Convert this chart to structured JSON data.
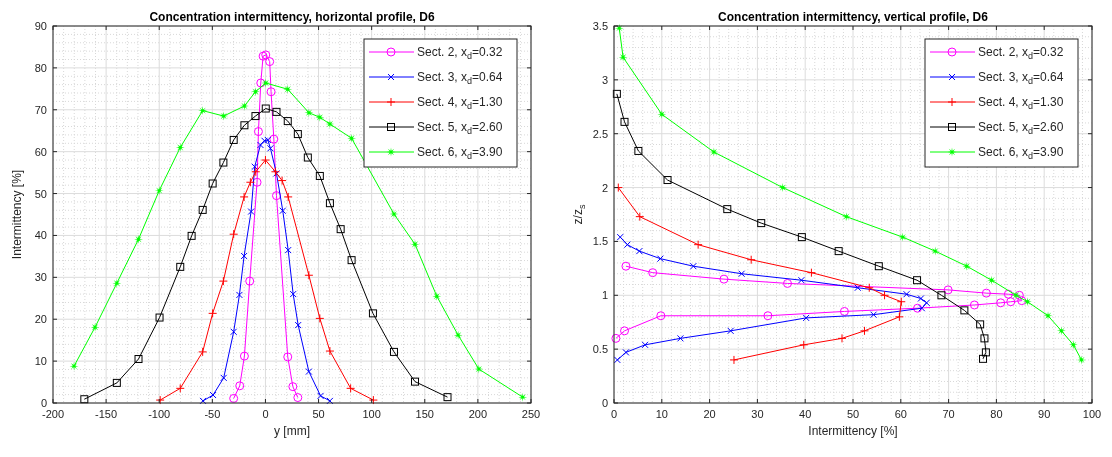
{
  "chart_data": [
    {
      "type": "line",
      "title": "Concentration intermittency, horizontal profile, D6",
      "xlabel": "y [mm]",
      "ylabel": "Intermittency [%]",
      "xlim": [
        -200,
        250
      ],
      "xticks": [
        -200,
        -150,
        -100,
        -50,
        0,
        50,
        100,
        150,
        200,
        250
      ],
      "ylim": [
        0,
        90
      ],
      "yticks": [
        0,
        10,
        20,
        30,
        40,
        50,
        60,
        70,
        80,
        90
      ],
      "grid": true,
      "legend": "top right",
      "line_style": "solid",
      "series": [
        {
          "name": "Sect. 2, x$_{d}$=0.32",
          "color": "#ff00ff",
          "marker": "circle",
          "x": [
            -29.9,
            -24.2,
            -19.8,
            -14.8,
            -7.9,
            -6.6,
            -4.4,
            -2.2,
            0.3,
            4,
            5.3,
            7.9,
            10.4,
            21,
            25.8,
            30.5
          ],
          "values": [
            1.1,
            4.1,
            11.2,
            29.1,
            52.7,
            64.8,
            76.4,
            82.8,
            83.1,
            81.5,
            74.3,
            63,
            49.5,
            11,
            3.9,
            1.3
          ]
        },
        {
          "name": "Sect. 3, x$_{d}$=0.64",
          "color": "#0000ff",
          "marker": "cross",
          "x": [
            -58.8,
            -49.3,
            -39.3,
            -29.9,
            -24.5,
            -20.1,
            -13.5,
            -10.1,
            -4.7,
            -0.9,
            2.2,
            4.7,
            10.4,
            16.3,
            21.4,
            26.1,
            30.8,
            40.9,
            51.9,
            60.7
          ],
          "values": [
            0.5,
            1.9,
            6,
            17,
            25.8,
            35.1,
            45.7,
            56.4,
            61.6,
            62.6,
            62.8,
            60.8,
            54.8,
            45.9,
            36.5,
            26,
            18.6,
            7.5,
            1.7,
            0.5
          ]
        },
        {
          "name": "Sect. 4, x$_{d}$=1.30",
          "color": "#ff0000",
          "marker": "plus",
          "x": [
            -99.1,
            -80.2,
            -59.1,
            -49.7,
            -39.6,
            -29.9,
            -20.1,
            -14.2,
            -9.1,
            0,
            9.4,
            15.7,
            21.4,
            40.9,
            51.2,
            60.7,
            80.2,
            101.6
          ],
          "values": [
            0.7,
            3.5,
            12.2,
            21.4,
            29.1,
            40.3,
            49.2,
            52.7,
            55.2,
            58,
            55.2,
            53.1,
            49.2,
            30.5,
            20.2,
            12.4,
            3.5,
            0.7
          ]
        },
        {
          "name": "Sect. 5, x$_{d}$=2.60",
          "color": "#000000",
          "marker": "square",
          "x": [
            -170.5,
            -139.9,
            -119.5,
            -99.7,
            -80.2,
            -69.5,
            -59.1,
            -49.7,
            -39.6,
            -29.9,
            -19.8,
            -9.4,
            0.3,
            10.4,
            21,
            30.5,
            39.9,
            51.2,
            60.7,
            70.8,
            81.1,
            101.2,
            121,
            140.8,
            171.4
          ],
          "values": [
            0.9,
            4.8,
            10.5,
            20.4,
            32.5,
            39.9,
            46.1,
            52.4,
            57.4,
            62.8,
            66.3,
            68.5,
            70.3,
            69.5,
            67.3,
            64.2,
            58.6,
            54.2,
            47.7,
            41.5,
            34.1,
            21.4,
            12.2,
            5.1,
            1.4
          ]
        },
        {
          "name": "Sect. 6, x$_{d}$=3.90",
          "color": "#00ff00",
          "marker": "star",
          "x": [
            -180.2,
            -160.4,
            -139.9,
            -119.5,
            -100,
            -80.2,
            -59.1,
            -39.3,
            -19.8,
            -9.4,
            0.3,
            21,
            40.9,
            51.2,
            60.7,
            81.1,
            121,
            140.8,
            161.3,
            181.4,
            200.9,
            242.2
          ],
          "values": [
            8.8,
            18.1,
            28.6,
            39.1,
            50.7,
            61,
            69.8,
            68.5,
            70.9,
            74.3,
            76.4,
            74.9,
            69.3,
            68.2,
            66.6,
            63.2,
            45.1,
            37.9,
            25.5,
            16.2,
            8.1,
            1.4
          ]
        }
      ]
    },
    {
      "type": "line",
      "title": "Concentration intermittency, vertical profile, D6",
      "xlabel": "Intermittency [%]",
      "ylabel": "z/z$_{s}$",
      "xlim": [
        0,
        100
      ],
      "xticks": [
        0,
        10,
        20,
        30,
        40,
        50,
        60,
        70,
        80,
        90,
        100
      ],
      "ylim": [
        0,
        3.5
      ],
      "yticks": [
        0,
        0.5,
        1,
        1.5,
        2,
        2.5,
        3,
        3.5
      ],
      "grid": true,
      "legend": "top right",
      "line_style": "solid",
      "series": [
        {
          "name": "Sect. 2, x$_{d}$=0.32",
          "color": "#ff00ff",
          "marker": "circle",
          "x": [
            2.5,
            8.1,
            23,
            36.3,
            69.9,
            77.9,
            82.5,
            84.8,
            85.3,
            83,
            80.9,
            75.4,
            63.5,
            48.2,
            32.2,
            9.8,
            2.2,
            0.4
          ],
          "values": [
            1.27,
            1.21,
            1.15,
            1.11,
            1.05,
            1.02,
            1.01,
            1,
            0.95,
            0.94,
            0.93,
            0.91,
            0.88,
            0.85,
            0.81,
            0.81,
            0.67,
            0.6
          ]
        },
        {
          "name": "Sect. 3, x$_{d}$=0.64",
          "color": "#0000ff",
          "marker": "cross",
          "x": [
            1.3,
            2.8,
            5.3,
            9.7,
            16.6,
            26.7,
            39.2,
            51,
            61.2,
            64.2,
            65.4,
            64.4,
            54.3,
            40.2,
            24.4,
            13.9,
            6.5,
            2.5,
            0.7
          ],
          "values": [
            1.54,
            1.47,
            1.41,
            1.34,
            1.27,
            1.2,
            1.14,
            1.07,
            1.01,
            0.97,
            0.93,
            0.88,
            0.82,
            0.79,
            0.67,
            0.6,
            0.54,
            0.47,
            0.4
          ]
        },
        {
          "name": "Sect. 4, x$_{d}$=1.30",
          "color": "#ff0000",
          "marker": "plus",
          "x": [
            0.9,
            5.4,
            17.6,
            28.7,
            41.3,
            53.4,
            56.6,
            60.1,
            59.7,
            52.4,
            47.7,
            39.7,
            25.1
          ],
          "values": [
            2,
            1.73,
            1.47,
            1.33,
            1.21,
            1.07,
            1,
            0.94,
            0.8,
            0.67,
            0.6,
            0.54,
            0.4
          ]
        },
        {
          "name": "Sect. 5, x$_{d}$=2.60",
          "color": "#000000",
          "marker": "square",
          "x": [
            0.6,
            2.2,
            5.1,
            11.2,
            23.7,
            30.8,
            39.3,
            47,
            55.4,
            63.4,
            68.5,
            73.3,
            76.6,
            77.5,
            77.8,
            77.2
          ],
          "values": [
            2.87,
            2.61,
            2.34,
            2.07,
            1.8,
            1.67,
            1.54,
            1.41,
            1.27,
            1.14,
            1,
            0.86,
            0.73,
            0.6,
            0.47,
            0.41
          ]
        },
        {
          "name": "Sect. 6, x$_{d}$=3.90",
          "color": "#00ff00",
          "marker": "star",
          "x": [
            1.1,
            1.9,
            10,
            20.9,
            35.3,
            48.6,
            60.4,
            67.2,
            73.8,
            79,
            84.1,
            86.5,
            90.8,
            93.6,
            96.1,
            97.8
          ],
          "values": [
            3.48,
            3.21,
            2.68,
            2.33,
            2,
            1.73,
            1.54,
            1.41,
            1.27,
            1.14,
            1,
            0.94,
            0.81,
            0.67,
            0.54,
            0.4
          ]
        }
      ]
    }
  ]
}
